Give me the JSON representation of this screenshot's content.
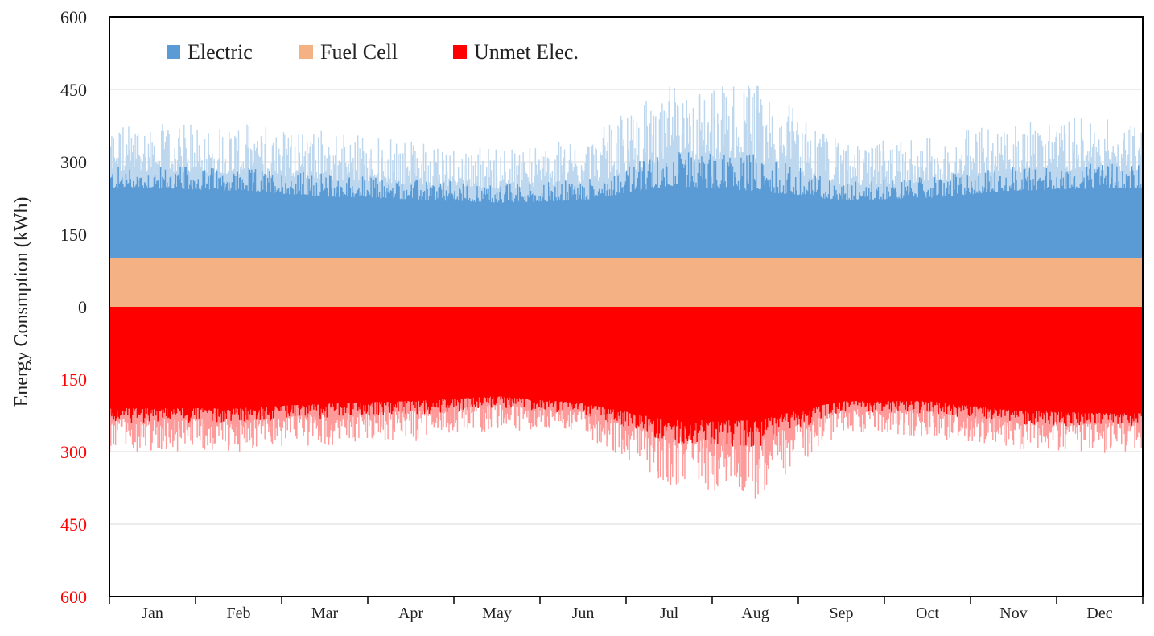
{
  "chart_data": {
    "type": "area",
    "title": "",
    "xlabel": "",
    "ylabel": "Energy Consmption (kWh)",
    "x_categories": [
      "Jan",
      "Feb",
      "Mar",
      "Apr",
      "May",
      "Jun",
      "Jul",
      "Aug",
      "Sep",
      "Oct",
      "Nov",
      "Dec"
    ],
    "y_ticks_positive": [
      {
        "value": 600,
        "label": "600"
      },
      {
        "value": 450,
        "label": "450"
      },
      {
        "value": 300,
        "label": "300"
      },
      {
        "value": 150,
        "label": "150"
      },
      {
        "value": 0,
        "label": "0"
      }
    ],
    "y_ticks_negative": [
      {
        "value": -150,
        "label": "150"
      },
      {
        "value": -300,
        "label": "300"
      },
      {
        "value": -450,
        "label": "450"
      },
      {
        "value": -600,
        "label": "600"
      }
    ],
    "ylim": [
      -600,
      600
    ],
    "grid": true,
    "legend_position": "top-left",
    "series": [
      {
        "name": "Electric",
        "color": "#5b9bd5",
        "base_value": 100,
        "monthly_typical_total": [
          245,
          240,
          228,
          222,
          215,
          220,
          250,
          240,
          220,
          225,
          240,
          245
        ],
        "monthly_peak_total": [
          380,
          380,
          370,
          345,
          330,
          345,
          460,
          470,
          340,
          350,
          390,
          390
        ]
      },
      {
        "name": "Fuel Cell",
        "color": "#f4b183",
        "values": [
          100,
          100,
          100,
          100,
          100,
          100,
          100,
          100,
          100,
          100,
          100,
          100
        ]
      },
      {
        "name": "Unmet Elec.",
        "color": "#ff0000",
        "monthly_typical": [
          -210,
          -210,
          -200,
          -195,
          -185,
          -200,
          -235,
          -235,
          -195,
          -195,
          -215,
          -220
        ],
        "monthly_peak": [
          -300,
          -300,
          -290,
          -280,
          -255,
          -265,
          -370,
          -400,
          -260,
          -270,
          -295,
          -305
        ]
      }
    ],
    "negative_tick_color": "#ff0000"
  }
}
